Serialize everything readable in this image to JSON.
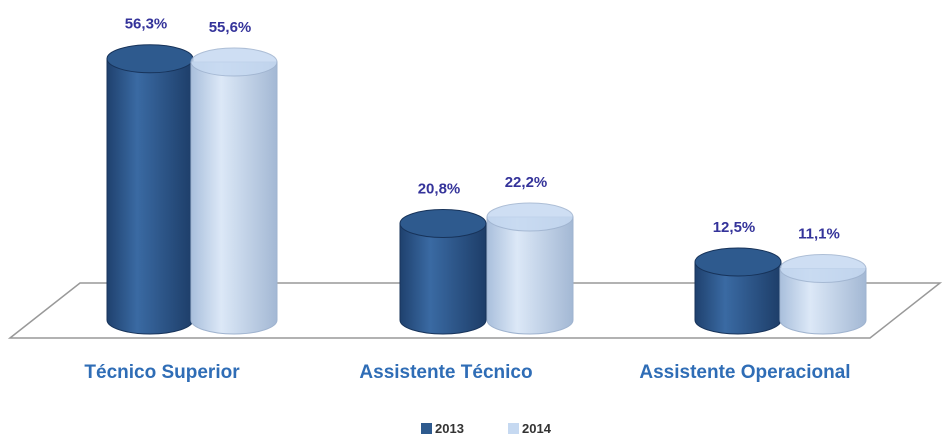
{
  "chart_data": {
    "type": "bar3d",
    "categories": [
      "Técnico Superior",
      "Assistente Técnico",
      "Assistente Operacional"
    ],
    "series": [
      {
        "name": "2013",
        "color": "#2e5a8e",
        "values": [
          56.3,
          20.8,
          12.5
        ],
        "value_labels": [
          "56,3%",
          "20,8%",
          "12,5%"
        ]
      },
      {
        "name": "2014",
        "color": "#c6d9f1",
        "values": [
          55.6,
          22.2,
          11.1
        ],
        "value_labels": [
          "55,6%",
          "22,2%",
          "11,1%"
        ]
      }
    ],
    "legend": "bottom"
  }
}
